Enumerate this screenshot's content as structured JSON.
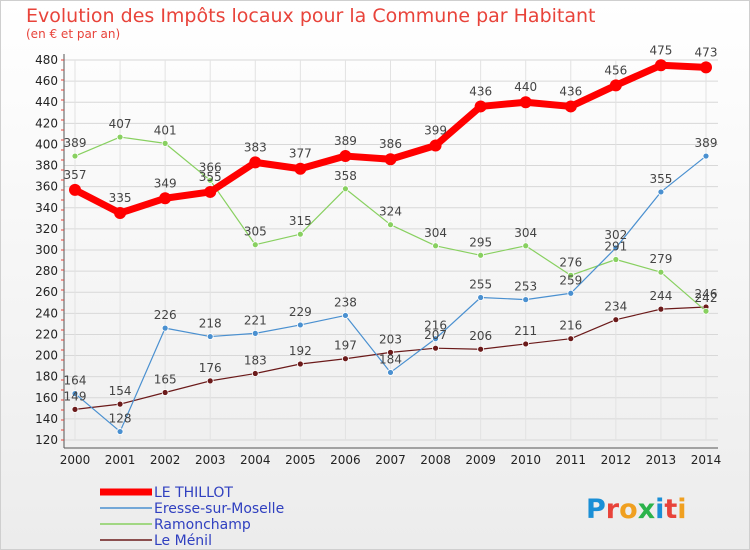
{
  "chart_data": {
    "type": "line",
    "title": "Evolution des Impôts locaux pour la Commune par Habitant",
    "subtitle": "(en € et par an)",
    "categories": [
      "2000",
      "2001",
      "2002",
      "2003",
      "2004",
      "2005",
      "2006",
      "2007",
      "2008",
      "2009",
      "2010",
      "2011",
      "2012",
      "2013",
      "2014"
    ],
    "ylim": [
      120,
      480
    ],
    "yticks": [
      120,
      140,
      160,
      180,
      200,
      220,
      240,
      260,
      280,
      300,
      320,
      340,
      360,
      380,
      400,
      420,
      440,
      460,
      480
    ],
    "grid": true,
    "legend_position": "bottom-left",
    "series": [
      {
        "name": "LE THILLOT",
        "color": "#ff0000",
        "values": [
          357,
          335,
          349,
          355,
          383,
          377,
          389,
          386,
          399,
          436,
          440,
          436,
          456,
          475,
          473
        ]
      },
      {
        "name": "Eresse-sur-Moselle",
        "color": "#4a90d0",
        "values": [
          164,
          128,
          226,
          218,
          221,
          229,
          238,
          184,
          216,
          255,
          253,
          259,
          302,
          355,
          389
        ]
      },
      {
        "name": "Ramonchamp",
        "color": "#88d060",
        "values": [
          389,
          407,
          401,
          366,
          305,
          315,
          358,
          324,
          304,
          295,
          304,
          276,
          291,
          279,
          242
        ]
      },
      {
        "name": "Le Ménil",
        "color": "#6b1a1a",
        "values": [
          149,
          154,
          165,
          176,
          183,
          192,
          197,
          203,
          207,
          206,
          211,
          216,
          234,
          244,
          246
        ]
      }
    ]
  },
  "logo": {
    "text": "Proxiti",
    "letter_colors": [
      "#1a8fd6",
      "#e8433a",
      "#f0a020",
      "#2bb34b",
      "#1a8fd6",
      "#e8433a",
      "#f0a020"
    ]
  }
}
